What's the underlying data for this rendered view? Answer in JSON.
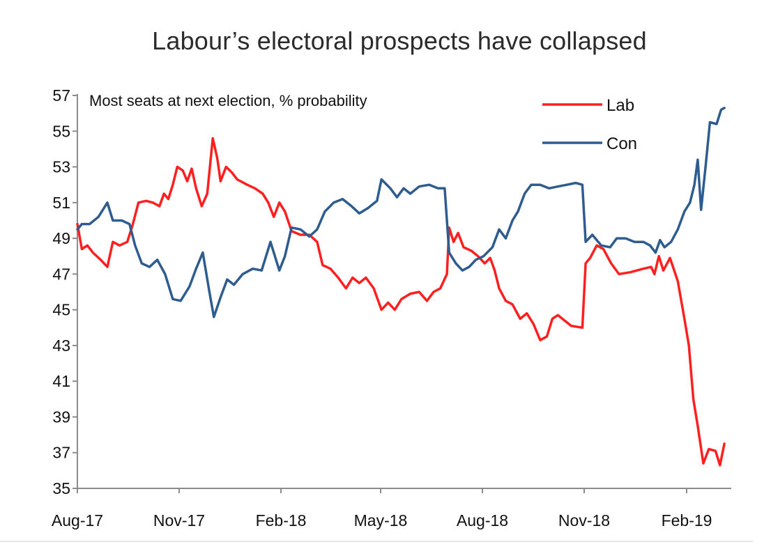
{
  "chart_data": {
    "type": "line",
    "title": "Labour’s electoral prospects have collapsed",
    "subtitle": "Most seats at next election, % probability",
    "ylim": [
      35,
      57
    ],
    "y_ticks": [
      57,
      55,
      53,
      51,
      49,
      47,
      45,
      43,
      41,
      39,
      37,
      35
    ],
    "x_tick_labels": [
      "Aug-17",
      "Nov-17",
      "Feb-18",
      "May-18",
      "Aug-18",
      "Nov-18",
      "Feb-19"
    ],
    "x_range": [
      "2017-08-01",
      "2019-03-15"
    ],
    "legend": {
      "position": "top-right"
    },
    "grid": false,
    "series": [
      {
        "name": "Lab",
        "color": "#ff1f1f",
        "points": [
          [
            "2017-08-01",
            49.8
          ],
          [
            "2017-08-05",
            48.4
          ],
          [
            "2017-08-10",
            48.6
          ],
          [
            "2017-08-15",
            48.2
          ],
          [
            "2017-08-22",
            47.8
          ],
          [
            "2017-08-28",
            47.4
          ],
          [
            "2017-09-02",
            48.8
          ],
          [
            "2017-09-08",
            48.6
          ],
          [
            "2017-09-15",
            48.8
          ],
          [
            "2017-09-20",
            49.8
          ],
          [
            "2017-09-25",
            51.0
          ],
          [
            "2017-10-02",
            51.1
          ],
          [
            "2017-10-08",
            51.0
          ],
          [
            "2017-10-14",
            50.8
          ],
          [
            "2017-10-18",
            51.5
          ],
          [
            "2017-10-22",
            51.2
          ],
          [
            "2017-10-26",
            52.0
          ],
          [
            "2017-10-30",
            53.0
          ],
          [
            "2017-11-04",
            52.8
          ],
          [
            "2017-11-08",
            52.2
          ],
          [
            "2017-11-12",
            52.9
          ],
          [
            "2017-11-16",
            51.8
          ],
          [
            "2017-11-21",
            50.8
          ],
          [
            "2017-11-26",
            51.5
          ],
          [
            "2017-12-01",
            54.6
          ],
          [
            "2017-12-05",
            53.5
          ],
          [
            "2017-12-08",
            52.2
          ],
          [
            "2017-12-13",
            53.0
          ],
          [
            "2017-12-18",
            52.7
          ],
          [
            "2017-12-23",
            52.3
          ],
          [
            "2018-01-01",
            52.0
          ],
          [
            "2018-01-08",
            51.8
          ],
          [
            "2018-01-15",
            51.5
          ],
          [
            "2018-01-20",
            51.0
          ],
          [
            "2018-01-25",
            50.2
          ],
          [
            "2018-01-30",
            51.0
          ],
          [
            "2018-02-04",
            50.5
          ],
          [
            "2018-02-10",
            49.4
          ],
          [
            "2018-02-18",
            49.2
          ],
          [
            "2018-02-26",
            49.2
          ],
          [
            "2018-03-05",
            48.8
          ],
          [
            "2018-03-10",
            47.5
          ],
          [
            "2018-03-17",
            47.3
          ],
          [
            "2018-03-24",
            46.8
          ],
          [
            "2018-03-31",
            46.2
          ],
          [
            "2018-04-06",
            46.8
          ],
          [
            "2018-04-12",
            46.5
          ],
          [
            "2018-04-18",
            46.8
          ],
          [
            "2018-04-25",
            46.2
          ],
          [
            "2018-05-02",
            45.0
          ],
          [
            "2018-05-08",
            45.4
          ],
          [
            "2018-05-14",
            45.0
          ],
          [
            "2018-05-20",
            45.6
          ],
          [
            "2018-05-28",
            45.9
          ],
          [
            "2018-06-05",
            46.0
          ],
          [
            "2018-06-12",
            45.5
          ],
          [
            "2018-06-18",
            46.0
          ],
          [
            "2018-06-24",
            46.2
          ],
          [
            "2018-06-30",
            47.0
          ],
          [
            "2018-07-02",
            49.6
          ],
          [
            "2018-07-06",
            48.8
          ],
          [
            "2018-07-10",
            49.3
          ],
          [
            "2018-07-15",
            48.5
          ],
          [
            "2018-07-22",
            48.3
          ],
          [
            "2018-07-28",
            48.0
          ],
          [
            "2018-08-03",
            47.6
          ],
          [
            "2018-08-08",
            47.9
          ],
          [
            "2018-08-12",
            47.2
          ],
          [
            "2018-08-16",
            46.2
          ],
          [
            "2018-08-22",
            45.5
          ],
          [
            "2018-08-28",
            45.3
          ],
          [
            "2018-09-04",
            44.5
          ],
          [
            "2018-09-10",
            44.8
          ],
          [
            "2018-09-16",
            44.2
          ],
          [
            "2018-09-22",
            43.3
          ],
          [
            "2018-09-28",
            43.5
          ],
          [
            "2018-10-03",
            44.5
          ],
          [
            "2018-10-08",
            44.7
          ],
          [
            "2018-10-12",
            44.5
          ],
          [
            "2018-10-20",
            44.1
          ],
          [
            "2018-10-30",
            44.0
          ],
          [
            "2018-11-02",
            47.6
          ],
          [
            "2018-11-06",
            47.9
          ],
          [
            "2018-11-12",
            48.6
          ],
          [
            "2018-11-18",
            48.4
          ],
          [
            "2018-11-25",
            47.6
          ],
          [
            "2018-12-02",
            47.0
          ],
          [
            "2018-12-12",
            47.1
          ],
          [
            "2018-12-24",
            47.3
          ],
          [
            "2018-12-31",
            47.4
          ],
          [
            "2019-01-03",
            47.0
          ],
          [
            "2019-01-07",
            48.0
          ],
          [
            "2019-01-11",
            47.2
          ],
          [
            "2019-01-17",
            47.9
          ],
          [
            "2019-01-24",
            46.6
          ],
          [
            "2019-01-30",
            44.5
          ],
          [
            "2019-02-03",
            43.0
          ],
          [
            "2019-02-07",
            40.0
          ],
          [
            "2019-02-11",
            38.5
          ],
          [
            "2019-02-16",
            36.4
          ],
          [
            "2019-02-21",
            37.2
          ],
          [
            "2019-02-27",
            37.1
          ],
          [
            "2019-03-03",
            36.3
          ],
          [
            "2019-03-07",
            37.5
          ]
        ]
      },
      {
        "name": "Con",
        "color": "#2e5c8e",
        "points": [
          [
            "2017-08-01",
            49.5
          ],
          [
            "2017-08-05",
            49.8
          ],
          [
            "2017-08-12",
            49.8
          ],
          [
            "2017-08-20",
            50.2
          ],
          [
            "2017-08-28",
            51.0
          ],
          [
            "2017-09-02",
            50.0
          ],
          [
            "2017-09-10",
            50.0
          ],
          [
            "2017-09-17",
            49.8
          ],
          [
            "2017-09-22",
            48.6
          ],
          [
            "2017-09-28",
            47.6
          ],
          [
            "2017-10-05",
            47.4
          ],
          [
            "2017-10-12",
            47.8
          ],
          [
            "2017-10-19",
            47.0
          ],
          [
            "2017-10-26",
            45.6
          ],
          [
            "2017-11-02",
            45.5
          ],
          [
            "2017-11-10",
            46.3
          ],
          [
            "2017-11-16",
            47.3
          ],
          [
            "2017-11-22",
            48.2
          ],
          [
            "2017-11-28",
            46.0
          ],
          [
            "2017-12-02",
            44.6
          ],
          [
            "2017-12-08",
            45.7
          ],
          [
            "2017-12-14",
            46.7
          ],
          [
            "2017-12-20",
            46.4
          ],
          [
            "2017-12-28",
            47.0
          ],
          [
            "2018-01-06",
            47.3
          ],
          [
            "2018-01-14",
            47.2
          ],
          [
            "2018-01-22",
            48.8
          ],
          [
            "2018-01-30",
            47.2
          ],
          [
            "2018-02-04",
            48.0
          ],
          [
            "2018-02-10",
            49.6
          ],
          [
            "2018-02-18",
            49.5
          ],
          [
            "2018-02-26",
            49.1
          ],
          [
            "2018-03-05",
            49.5
          ],
          [
            "2018-03-12",
            50.5
          ],
          [
            "2018-03-20",
            51.0
          ],
          [
            "2018-03-28",
            51.2
          ],
          [
            "2018-04-05",
            50.8
          ],
          [
            "2018-04-12",
            50.4
          ],
          [
            "2018-04-20",
            50.7
          ],
          [
            "2018-04-28",
            51.1
          ],
          [
            "2018-05-02",
            52.3
          ],
          [
            "2018-05-10",
            51.8
          ],
          [
            "2018-05-16",
            51.3
          ],
          [
            "2018-05-22",
            51.8
          ],
          [
            "2018-05-28",
            51.5
          ],
          [
            "2018-06-05",
            51.9
          ],
          [
            "2018-06-14",
            52.0
          ],
          [
            "2018-06-22",
            51.8
          ],
          [
            "2018-06-28",
            51.8
          ],
          [
            "2018-07-02",
            48.2
          ],
          [
            "2018-07-08",
            47.6
          ],
          [
            "2018-07-14",
            47.2
          ],
          [
            "2018-07-20",
            47.4
          ],
          [
            "2018-07-26",
            47.8
          ],
          [
            "2018-08-02",
            48.0
          ],
          [
            "2018-08-10",
            48.5
          ],
          [
            "2018-08-16",
            49.5
          ],
          [
            "2018-08-22",
            49.0
          ],
          [
            "2018-08-28",
            50.0
          ],
          [
            "2018-09-02",
            50.5
          ],
          [
            "2018-09-08",
            51.5
          ],
          [
            "2018-09-14",
            52.0
          ],
          [
            "2018-09-22",
            52.0
          ],
          [
            "2018-09-30",
            51.8
          ],
          [
            "2018-10-08",
            51.9
          ],
          [
            "2018-10-16",
            52.0
          ],
          [
            "2018-10-24",
            52.1
          ],
          [
            "2018-10-30",
            52.0
          ],
          [
            "2018-11-02",
            48.8
          ],
          [
            "2018-11-08",
            49.2
          ],
          [
            "2018-11-16",
            48.6
          ],
          [
            "2018-11-24",
            48.5
          ],
          [
            "2018-11-30",
            49.0
          ],
          [
            "2018-12-08",
            49.0
          ],
          [
            "2018-12-16",
            48.8
          ],
          [
            "2018-12-24",
            48.8
          ],
          [
            "2018-12-30",
            48.6
          ],
          [
            "2019-01-04",
            48.2
          ],
          [
            "2019-01-08",
            48.9
          ],
          [
            "2019-01-12",
            48.5
          ],
          [
            "2019-01-18",
            48.8
          ],
          [
            "2019-01-24",
            49.5
          ],
          [
            "2019-01-30",
            50.5
          ],
          [
            "2019-02-04",
            51.0
          ],
          [
            "2019-02-08",
            52.0
          ],
          [
            "2019-02-11",
            53.4
          ],
          [
            "2019-02-14",
            50.6
          ],
          [
            "2019-02-18",
            53.0
          ],
          [
            "2019-02-22",
            55.5
          ],
          [
            "2019-02-28",
            55.4
          ],
          [
            "2019-03-04",
            56.2
          ],
          [
            "2019-03-07",
            56.3
          ]
        ]
      }
    ]
  }
}
